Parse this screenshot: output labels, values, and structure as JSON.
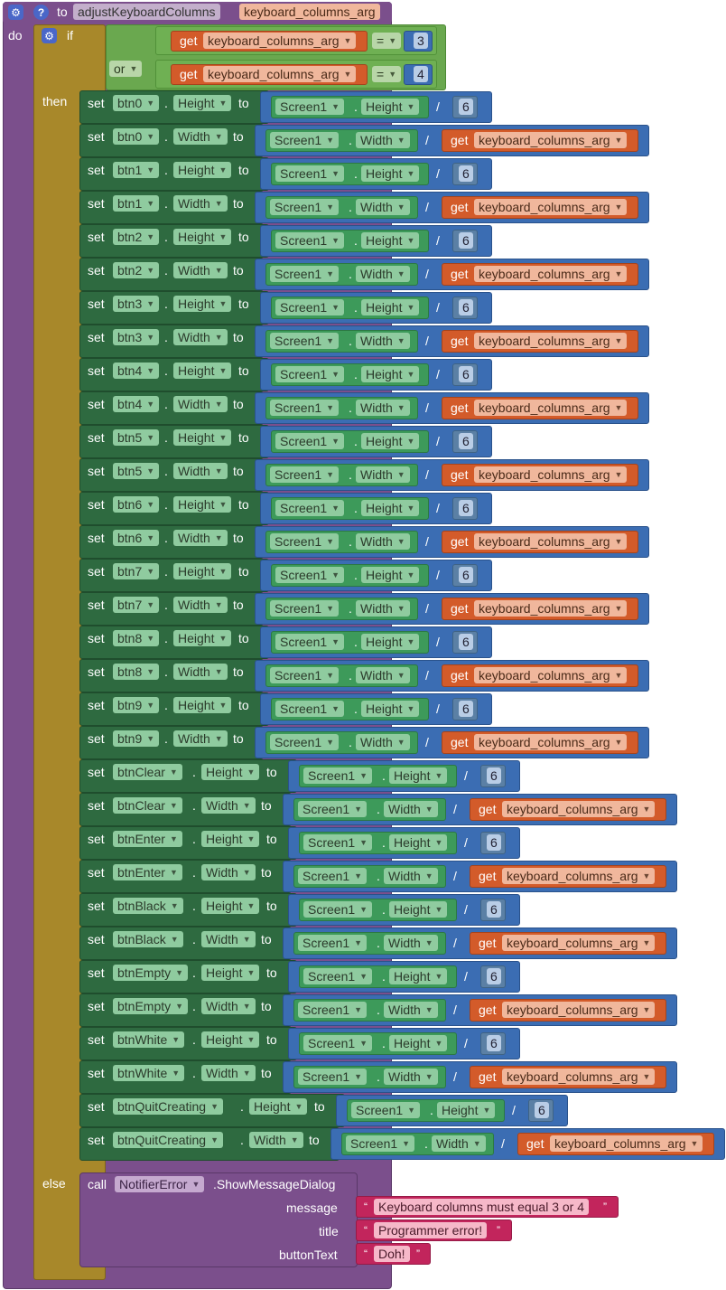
{
  "procedure": {
    "to_label": "to",
    "name": "adjustKeyboardColumns",
    "param": "keyboard_columns_arg",
    "do_label": "do"
  },
  "if_block": {
    "if_label": "if",
    "then_label": "then",
    "else_label": "else",
    "or_label": "or",
    "get_label": "get",
    "var": "keyboard_columns_arg",
    "eq": "=",
    "cmp1": "3",
    "cmp2": "4"
  },
  "set_label": "set",
  "to_label": "to",
  "screen_label": "Screen1",
  "height_label": "Height",
  "width_label": "Width",
  "divisor": "6",
  "div_op": "/",
  "dot": ".",
  "rows": [
    {
      "comp": "btn0",
      "prop": "Height"
    },
    {
      "comp": "btn0",
      "prop": "Width"
    },
    {
      "comp": "btn1",
      "prop": "Height"
    },
    {
      "comp": "btn1",
      "prop": "Width"
    },
    {
      "comp": "btn2",
      "prop": "Height"
    },
    {
      "comp": "btn2",
      "prop": "Width"
    },
    {
      "comp": "btn3",
      "prop": "Height"
    },
    {
      "comp": "btn3",
      "prop": "Width"
    },
    {
      "comp": "btn4",
      "prop": "Height"
    },
    {
      "comp": "btn4",
      "prop": "Width"
    },
    {
      "comp": "btn5",
      "prop": "Height"
    },
    {
      "comp": "btn5",
      "prop": "Width"
    },
    {
      "comp": "btn6",
      "prop": "Height"
    },
    {
      "comp": "btn6",
      "prop": "Width"
    },
    {
      "comp": "btn7",
      "prop": "Height"
    },
    {
      "comp": "btn7",
      "prop": "Width"
    },
    {
      "comp": "btn8",
      "prop": "Height"
    },
    {
      "comp": "btn8",
      "prop": "Width"
    },
    {
      "comp": "btn9",
      "prop": "Height"
    },
    {
      "comp": "btn9",
      "prop": "Width"
    },
    {
      "comp": "btnClear",
      "prop": "Height"
    },
    {
      "comp": "btnClear",
      "prop": "Width"
    },
    {
      "comp": "btnEnter",
      "prop": "Height"
    },
    {
      "comp": "btnEnter",
      "prop": "Width"
    },
    {
      "comp": "btnBlack",
      "prop": "Height"
    },
    {
      "comp": "btnBlack",
      "prop": "Width"
    },
    {
      "comp": "btnEmpty",
      "prop": "Height"
    },
    {
      "comp": "btnEmpty",
      "prop": "Width"
    },
    {
      "comp": "btnWhite",
      "prop": "Height"
    },
    {
      "comp": "btnWhite",
      "prop": "Width"
    },
    {
      "comp": "btnQuitCreating",
      "prop": "Height"
    },
    {
      "comp": "btnQuitCreating",
      "prop": "Width"
    }
  ],
  "else_call": {
    "call_label": "call",
    "component": "NotifierError",
    "method": ".ShowMessageDialog",
    "message_label": "message",
    "title_label": "title",
    "button_label": "buttonText",
    "message": "Keyboard columns must equal 3 or 4",
    "title": "Programmer error!",
    "button_text": "Doh!"
  },
  "colors": {
    "procedure": "#7b4f8c",
    "control": "#a8882a",
    "setter": "#2e6a40",
    "math": "#3b6db3",
    "screen": "#3d9a5a",
    "get": "#d35b2a",
    "text": "#c2255c"
  }
}
